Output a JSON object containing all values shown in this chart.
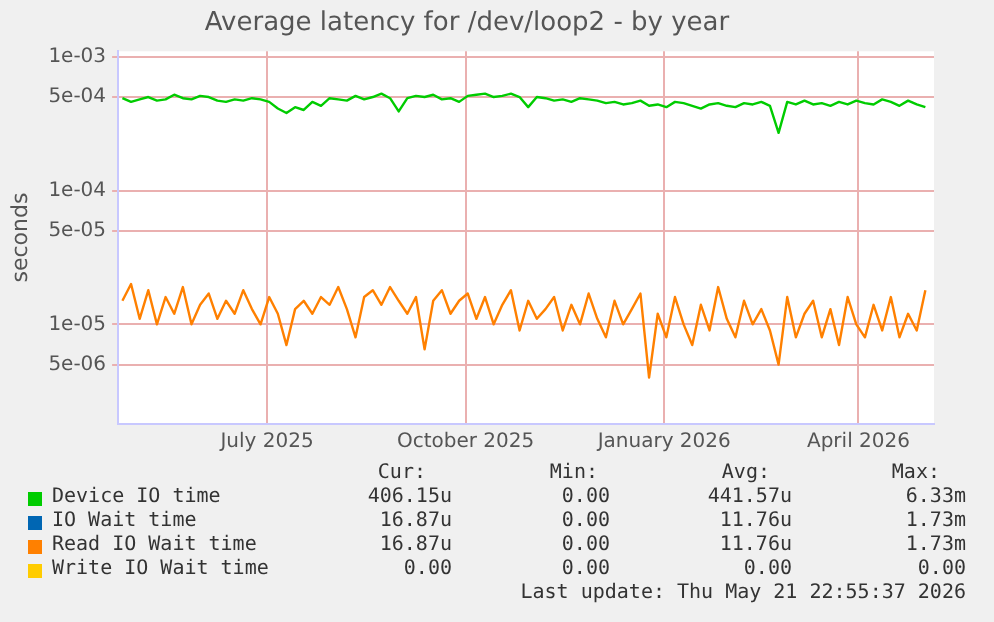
{
  "chart_data": {
    "type": "line",
    "title": "Average latency for /dev/loop2 - by year",
    "ylabel": "seconds",
    "log": true,
    "grid": true,
    "legend": "bottom",
    "xlim": [
      "2025-04-23",
      "2026-05-06"
    ],
    "xticks": [
      {
        "value": "2025-07-01",
        "label": "July 2025"
      },
      {
        "value": "2025-10-01",
        "label": "October 2025"
      },
      {
        "value": "2026-01-01",
        "label": "January 2026"
      },
      {
        "value": "2026-04-01",
        "label": "April 2026"
      }
    ],
    "ylim": [
      1.8e-06,
      0.0011
    ],
    "yticks": [
      {
        "value": 0.001,
        "label": "1e-03"
      },
      {
        "value": 0.0005,
        "label": "5e-04"
      },
      {
        "value": 0.0001,
        "label": "1e-04"
      },
      {
        "value": 5e-05,
        "label": "5e-05"
      },
      {
        "value": 1e-05,
        "label": "1e-05"
      },
      {
        "value": 5e-06,
        "label": "5e-06"
      }
    ],
    "x": [
      "2025-04-25",
      "2025-04-29",
      "2025-05-03",
      "2025-05-07",
      "2025-05-11",
      "2025-05-15",
      "2025-05-19",
      "2025-05-23",
      "2025-05-27",
      "2025-05-31",
      "2025-06-04",
      "2025-06-08",
      "2025-06-12",
      "2025-06-16",
      "2025-06-20",
      "2025-06-24",
      "2025-06-28",
      "2025-07-02",
      "2025-07-06",
      "2025-07-10",
      "2025-07-14",
      "2025-07-18",
      "2025-07-22",
      "2025-07-26",
      "2025-07-30",
      "2025-08-03",
      "2025-08-07",
      "2025-08-11",
      "2025-08-15",
      "2025-08-19",
      "2025-08-23",
      "2025-08-27",
      "2025-08-31",
      "2025-09-04",
      "2025-09-08",
      "2025-09-12",
      "2025-09-16",
      "2025-09-20",
      "2025-09-24",
      "2025-09-28",
      "2025-10-02",
      "2025-10-06",
      "2025-10-10",
      "2025-10-14",
      "2025-10-18",
      "2025-10-22",
      "2025-10-26",
      "2025-10-30",
      "2025-11-03",
      "2025-11-07",
      "2025-11-11",
      "2025-11-15",
      "2025-11-19",
      "2025-11-23",
      "2025-11-27",
      "2025-12-01",
      "2025-12-05",
      "2025-12-09",
      "2025-12-13",
      "2025-12-17",
      "2025-12-21",
      "2025-12-25",
      "2025-12-29",
      "2026-01-02",
      "2026-01-06",
      "2026-01-10",
      "2026-01-14",
      "2026-01-18",
      "2026-01-22",
      "2026-01-26",
      "2026-01-30",
      "2026-02-03",
      "2026-02-07",
      "2026-02-11",
      "2026-02-15",
      "2026-02-19",
      "2026-02-23",
      "2026-02-27",
      "2026-03-03",
      "2026-03-07",
      "2026-03-11",
      "2026-03-15",
      "2026-03-19",
      "2026-03-23",
      "2026-03-27",
      "2026-03-31",
      "2026-04-04",
      "2026-04-08",
      "2026-04-12",
      "2026-04-16",
      "2026-04-20",
      "2026-04-24",
      "2026-04-28",
      "2026-05-02"
    ],
    "series": [
      {
        "name": "Device IO time",
        "color": "#00cc00",
        "values": [
          0.00049,
          0.00046,
          0.00048,
          0.0005,
          0.00047,
          0.00048,
          0.00052,
          0.00049,
          0.00048,
          0.00051,
          0.0005,
          0.00047,
          0.00046,
          0.00048,
          0.00047,
          0.00049,
          0.00048,
          0.00046,
          0.00041,
          0.00038,
          0.00042,
          0.0004,
          0.00046,
          0.00043,
          0.00049,
          0.00048,
          0.00047,
          0.00051,
          0.00048,
          0.0005,
          0.00053,
          0.00049,
          0.00039,
          0.00049,
          0.00051,
          0.0005,
          0.00052,
          0.00048,
          0.00049,
          0.00046,
          0.00051,
          0.00052,
          0.00053,
          0.0005,
          0.00051,
          0.00053,
          0.0005,
          0.00042,
          0.0005,
          0.00049,
          0.00047,
          0.00048,
          0.00046,
          0.00049,
          0.00048,
          0.00047,
          0.00045,
          0.00046,
          0.00044,
          0.00045,
          0.00047,
          0.00043,
          0.00044,
          0.00042,
          0.00046,
          0.00045,
          0.00043,
          0.00041,
          0.00044,
          0.00045,
          0.00043,
          0.00042,
          0.00045,
          0.00044,
          0.00046,
          0.00043,
          0.00027,
          0.00046,
          0.00044,
          0.00047,
          0.00044,
          0.00045,
          0.00043,
          0.00046,
          0.00044,
          0.00047,
          0.00045,
          0.00044,
          0.00048,
          0.00046,
          0.00043,
          0.00047,
          0.00044,
          0.00042
        ]
      },
      {
        "name": "IO Wait time",
        "color": "#0066b3",
        "values": [
          null,
          null,
          null,
          null,
          null,
          null,
          null,
          null,
          null,
          null,
          null,
          null,
          null,
          null,
          null,
          null,
          null,
          null,
          null,
          null,
          null,
          null,
          null,
          null,
          null,
          null,
          null,
          null,
          null,
          null,
          null,
          null,
          null,
          null,
          null,
          null,
          null,
          null,
          null,
          null,
          null,
          null,
          null,
          null,
          null,
          null,
          null,
          null,
          null,
          null,
          null,
          null,
          null,
          null,
          null,
          null,
          null,
          null,
          null,
          null,
          null,
          null,
          null,
          null,
          null,
          null,
          null,
          null,
          null,
          null,
          null,
          null,
          null,
          null,
          null,
          null,
          null,
          null,
          null,
          null,
          null,
          null,
          null,
          null,
          null,
          null,
          null,
          null,
          null,
          null,
          null,
          null,
          null,
          null
        ]
      },
      {
        "name": "Read IO Wait time",
        "color": "#ff8000",
        "values": [
          1.5e-05,
          2e-05,
          1.1e-05,
          1.8e-05,
          1e-05,
          1.6e-05,
          1.2e-05,
          1.9e-05,
          1e-05,
          1.4e-05,
          1.7e-05,
          1.1e-05,
          1.5e-05,
          1.2e-05,
          1.8e-05,
          1.3e-05,
          1e-05,
          1.6e-05,
          1.2e-05,
          7e-06,
          1.3e-05,
          1.5e-05,
          1.2e-05,
          1.6e-05,
          1.4e-05,
          1.9e-05,
          1.3e-05,
          8e-06,
          1.6e-05,
          1.8e-05,
          1.4e-05,
          1.9e-05,
          1.5e-05,
          1.2e-05,
          1.6e-05,
          6.5e-06,
          1.5e-05,
          1.8e-05,
          1.2e-05,
          1.5e-05,
          1.7e-05,
          1.1e-05,
          1.6e-05,
          1e-05,
          1.4e-05,
          1.8e-05,
          9e-06,
          1.5e-05,
          1.1e-05,
          1.3e-05,
          1.6e-05,
          9e-06,
          1.4e-05,
          1e-05,
          1.7e-05,
          1.1e-05,
          8e-06,
          1.5e-05,
          1e-05,
          1.3e-05,
          1.7e-05,
          4e-06,
          1.2e-05,
          8e-06,
          1.6e-05,
          1e-05,
          7e-06,
          1.4e-05,
          9e-06,
          1.9e-05,
          1.1e-05,
          8e-06,
          1.5e-05,
          1e-05,
          1.3e-05,
          9e-06,
          5e-06,
          1.6e-05,
          8e-06,
          1.2e-05,
          1.5e-05,
          8e-06,
          1.3e-05,
          7e-06,
          1.6e-05,
          1e-05,
          8e-06,
          1.4e-05,
          9e-06,
          1.6e-05,
          8e-06,
          1.2e-05,
          9e-06,
          1.8e-05
        ]
      },
      {
        "name": "Write IO Wait time",
        "color": "#ffcc00",
        "values": [
          null,
          null,
          null,
          null,
          null,
          null,
          null,
          null,
          null,
          null,
          null,
          null,
          null,
          null,
          null,
          null,
          null,
          null,
          null,
          null,
          null,
          null,
          null,
          null,
          null,
          null,
          null,
          null,
          null,
          null,
          null,
          null,
          null,
          null,
          null,
          null,
          null,
          null,
          null,
          null,
          null,
          null,
          null,
          null,
          null,
          null,
          null,
          null,
          null,
          null,
          null,
          null,
          null,
          null,
          null,
          null,
          null,
          null,
          null,
          null,
          null,
          null,
          null,
          null,
          null,
          null,
          null,
          null,
          null,
          null,
          null,
          null,
          null,
          null,
          null,
          null,
          null,
          null,
          null,
          null,
          null,
          null,
          null,
          null,
          null,
          null,
          null,
          null,
          null,
          null,
          null,
          null,
          null,
          null
        ]
      }
    ],
    "annotations": [
      "Cur:",
      "Min:",
      "Avg:",
      "Max:",
      "406.15u",
      "0.00",
      "441.57u",
      "6.33m",
      "16.87u",
      "0.00",
      "11.76u",
      "1.73m",
      "16.87u",
      "0.00",
      "11.76u",
      "1.73m",
      "0.00",
      "0.00",
      "0.00",
      "0.00",
      "Last update: Thu May 21 22:55:37 2026"
    ]
  }
}
